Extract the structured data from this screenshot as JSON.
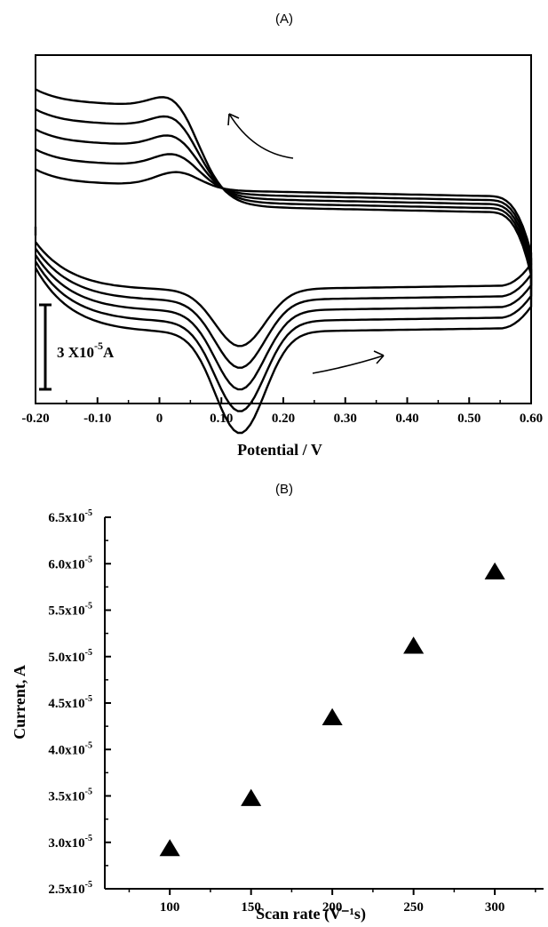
{
  "panels": {
    "a_label": "(A)",
    "b_label": "(B)"
  },
  "chart_data": [
    {
      "type": "line",
      "xlabel": "Potential / V",
      "ylabel": "",
      "xlim": [
        -0.2,
        0.6
      ],
      "xticks": [
        "-0.20",
        "-0.10",
        "0",
        "0.10",
        "0.20",
        "0.30",
        "0.40",
        "0.50",
        "0.60"
      ],
      "scale_bar": {
        "label_main": "3 X10",
        "label_exp": "-5",
        "label_unit": "A",
        "value": 3e-05
      },
      "series_count": 5,
      "peaks": {
        "anodic_V": 0.03,
        "cathodic_V": 0.13
      },
      "grid": false
    },
    {
      "type": "scatter",
      "marker": "triangle",
      "xlabel": "Scan rate (V⁻¹s)",
      "ylabel": "Current, A",
      "xlim": [
        60,
        330
      ],
      "ylim": [
        2.5e-05,
        6.5e-05
      ],
      "xticks": [
        100,
        150,
        200,
        250,
        300
      ],
      "yticks": [
        "2.5x10",
        "3.0x10",
        "3.5x10",
        "4.0x10",
        "4.5x10",
        "5.0x10",
        "5.5x10",
        "6.0x10",
        "6.5x10"
      ],
      "ytick_exp": "-5",
      "x": [
        100,
        150,
        200,
        250,
        300
      ],
      "y": [
        2.93e-05,
        3.47e-05,
        4.34e-05,
        5.11e-05,
        5.91e-05
      ],
      "grid": false
    }
  ]
}
